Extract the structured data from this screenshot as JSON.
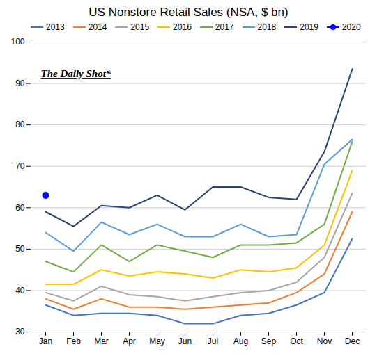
{
  "chart_data": {
    "type": "line",
    "title": "US Nonstore Retail Sales (NSA, $ bn)",
    "annotations": [
      "The Daily Shot*"
    ],
    "categories": [
      "Jan",
      "Feb",
      "Mar",
      "Apr",
      "May",
      "Jun",
      "Jul",
      "Aug",
      "Sep",
      "Oct",
      "Nov",
      "Dec"
    ],
    "series": [
      {
        "name": "2013",
        "color": "#4472C4",
        "values": [
          36.5,
          34.0,
          34.5,
          34.5,
          34.0,
          32.0,
          32.0,
          34.0,
          34.5,
          36.5,
          39.5,
          52.5
        ]
      },
      {
        "name": "2014",
        "color": "#ED7D31",
        "values": [
          38.0,
          35.5,
          38.0,
          36.0,
          36.0,
          35.5,
          36.0,
          36.5,
          37.0,
          39.5,
          44.0,
          59.0
        ]
      },
      {
        "name": "2015",
        "color": "#A5A5A5",
        "values": [
          39.5,
          37.5,
          41.0,
          39.0,
          38.5,
          37.5,
          38.5,
          39.5,
          40.0,
          42.0,
          48.0,
          63.5
        ]
      },
      {
        "name": "2016",
        "color": "#FFC000",
        "values": [
          41.5,
          41.5,
          45.0,
          43.5,
          44.5,
          44.0,
          43.0,
          45.0,
          44.5,
          45.5,
          51.0,
          69.0
        ]
      },
      {
        "name": "2017",
        "color": "#70AD47",
        "values": [
          47.0,
          44.5,
          51.0,
          47.0,
          51.0,
          49.5,
          48.0,
          51.0,
          51.0,
          51.5,
          56.0,
          76.0
        ]
      },
      {
        "name": "2018",
        "color": "#5B9BD5",
        "values": [
          54.0,
          49.5,
          56.5,
          53.5,
          56.0,
          53.0,
          53.0,
          56.0,
          53.0,
          53.5,
          70.5,
          76.5
        ]
      },
      {
        "name": "2019",
        "color": "#264478",
        "values": [
          59.0,
          55.5,
          60.5,
          60.0,
          63.0,
          59.5,
          65.0,
          65.0,
          62.5,
          62.0,
          73.5,
          93.5
        ]
      },
      {
        "name": "2020",
        "color": "#0000FF",
        "marker": "circle",
        "values": [
          63.0,
          null,
          null,
          null,
          null,
          null,
          null,
          null,
          null,
          null,
          null,
          null
        ]
      }
    ],
    "ylim": [
      30,
      100
    ],
    "yticks": [
      30,
      40,
      50,
      60,
      70,
      80,
      90,
      100
    ],
    "grid": true,
    "legend": "upper left"
  }
}
